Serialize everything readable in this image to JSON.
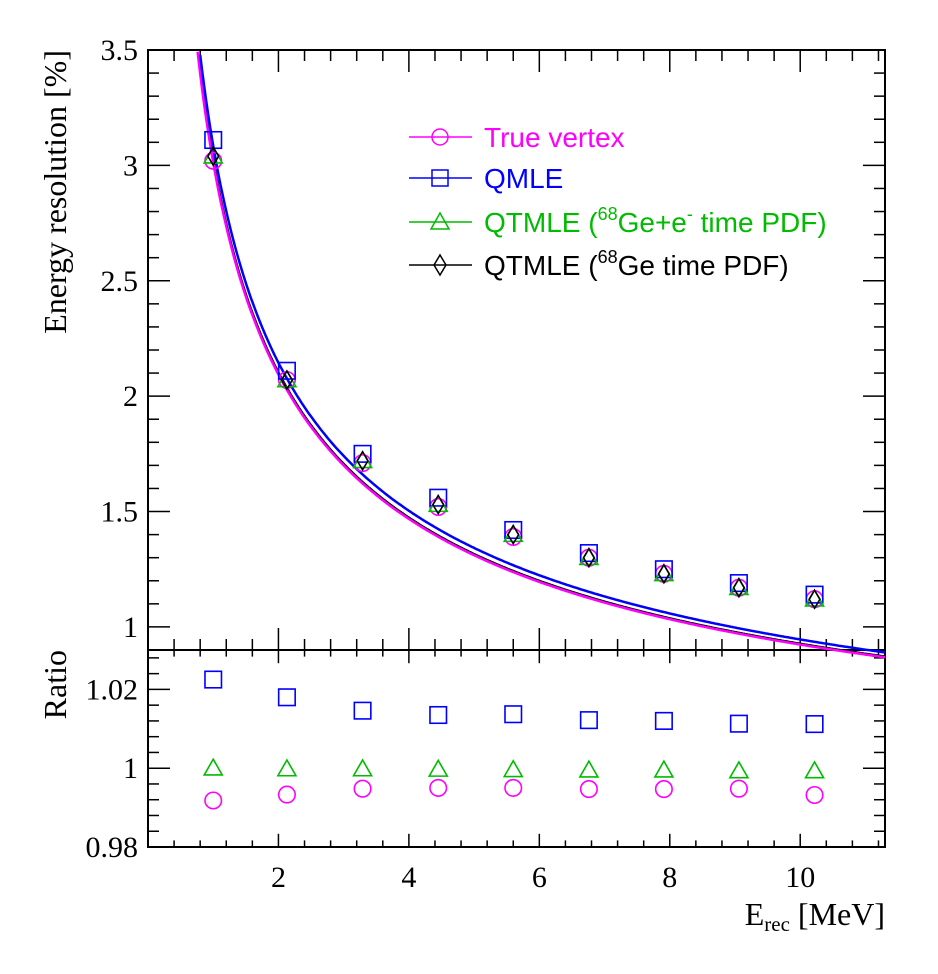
{
  "chart_data": [
    {
      "type": "line",
      "panel": "main",
      "ylabel": "Energy resolution [%]",
      "xlim": [
        0,
        11.3
      ],
      "ylim": [
        0.9,
        3.5
      ],
      "y_ticks": [
        "1",
        "1.5",
        "2",
        "2.5",
        "3",
        "3.5"
      ],
      "x": [
        1.0,
        2.13,
        3.29,
        4.45,
        5.6,
        6.76,
        7.91,
        9.06,
        10.22
      ],
      "series": [
        {
          "name": "True vertex",
          "color": "#ff00ff",
          "marker": "open-circle",
          "values": [
            3.02,
            2.07,
            1.71,
            1.52,
            1.39,
            1.3,
            1.23,
            1.17,
            1.12
          ],
          "fit": {
            "a": 2.91,
            "b": 0.0,
            "c": 0.78
          }
        },
        {
          "name": "QMLE",
          "color": "#0000ff",
          "marker": "open-square",
          "values": [
            3.11,
            2.11,
            1.75,
            1.56,
            1.42,
            1.32,
            1.25,
            1.19,
            1.14
          ],
          "fit": {
            "a": 2.98,
            "b": 0.0,
            "c": 0.8
          }
        },
        {
          "name": "QTMLE (⁶⁸Ge+e⁻ time PDF)",
          "color": "#00bb00",
          "marker": "open-triangle",
          "values": [
            3.04,
            2.07,
            1.72,
            1.53,
            1.4,
            1.3,
            1.23,
            1.17,
            1.12
          ],
          "fit": {
            "a": 2.92,
            "b": 0.0,
            "c": 0.785
          }
        },
        {
          "name": "QTMLE (⁶⁸Ge time PDF)",
          "color": "#000000",
          "marker": "open-diamond",
          "values": [
            3.04,
            2.07,
            1.72,
            1.53,
            1.4,
            1.3,
            1.23,
            1.17,
            1.12
          ],
          "fit": {
            "a": 2.92,
            "b": 0.0,
            "c": 0.785
          }
        }
      ]
    },
    {
      "type": "scatter",
      "panel": "ratio",
      "xlabel": "E_rec [MeV]",
      "ylabel": "Ratio",
      "xlim": [
        0,
        11.3
      ],
      "ylim": [
        0.98,
        1.03
      ],
      "x_ticks": [
        "2",
        "4",
        "6",
        "8",
        "10"
      ],
      "y_ticks": [
        "0.98",
        "1",
        "1.02"
      ],
      "x": [
        1.0,
        2.13,
        3.29,
        4.45,
        5.6,
        6.76,
        7.91,
        9.06,
        10.22
      ],
      "series": [
        {
          "name": "QMLE",
          "color": "#0000ff",
          "marker": "open-square",
          "values": [
            1.0225,
            1.018,
            1.0146,
            1.0135,
            1.0137,
            1.0122,
            1.012,
            1.0113,
            1.0112
          ]
        },
        {
          "name": "QTMLE (⁶⁸Ge+e⁻ time PDF)",
          "color": "#00bb00",
          "marker": "open-triangle",
          "values": [
            1.0,
            0.9998,
            0.9998,
            0.9997,
            0.9996,
            0.9995,
            0.9995,
            0.9993,
            0.9993
          ]
        },
        {
          "name": "True vertex",
          "color": "#ff00ff",
          "marker": "open-circle",
          "values": [
            0.9918,
            0.9933,
            0.9948,
            0.995,
            0.995,
            0.9947,
            0.9947,
            0.9948,
            0.9932
          ]
        }
      ]
    }
  ],
  "legend": {
    "items": [
      {
        "label": "True vertex",
        "color": "#ff00ff",
        "marker": "open-circle",
        "text_color": "#ff00ff"
      },
      {
        "label": "QMLE",
        "color": "#0000ff",
        "marker": "open-square",
        "text_color": "#0000ff"
      },
      {
        "label_pre": "QTMLE (",
        "sup1": "68",
        "label_mid": "Ge+e",
        "sup2": "-",
        "label_post": " time PDF)",
        "color": "#00bb00",
        "marker": "open-triangle",
        "text_color": "#00bb00"
      },
      {
        "label_pre": "QTMLE (",
        "sup1": "68",
        "label_post": "Ge time PDF)",
        "color": "#000000",
        "marker": "open-diamond",
        "text_color": "#000000"
      }
    ]
  },
  "x_axis_title": {
    "main": "E",
    "sub": "rec",
    "unit": " [MeV]"
  }
}
